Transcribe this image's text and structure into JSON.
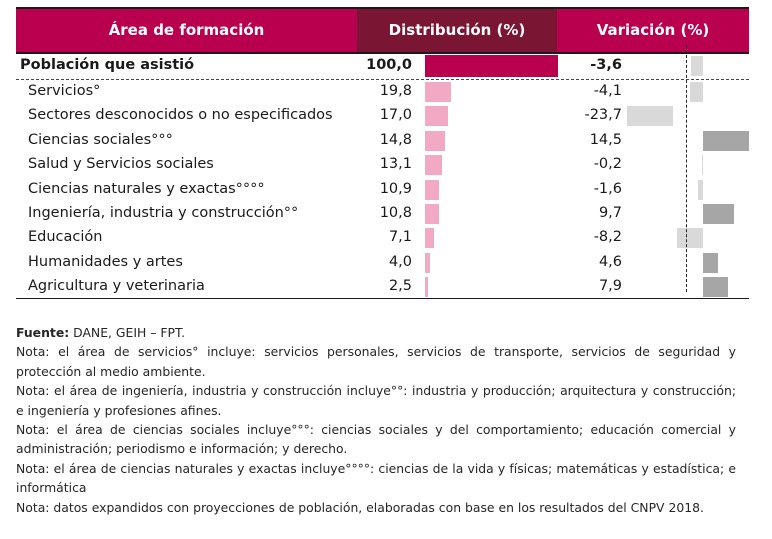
{
  "table": {
    "headers": {
      "area": "Área de formación",
      "distribution": "Distribución (%)",
      "variation": "Variación (%)"
    },
    "colors": {
      "header_primary": "#B8004E",
      "header_secondary": "#7A1633",
      "distribution_bar": "#F2A9C4",
      "total_bar": "#B8004E",
      "variation_negative": "#D9D9D9",
      "variation_positive": "#A6A6A6"
    },
    "total": {
      "label": "Población que asistió",
      "distribution": "100,0",
      "variation": "-3,6",
      "distribution_value": 100.0,
      "variation_value": -3.6
    },
    "rows": [
      {
        "label": "Servicios°",
        "distribution": "19,8",
        "variation": "-4,1",
        "distribution_value": 19.8,
        "variation_value": -4.1
      },
      {
        "label": "Sectores desconocidos o no especificados",
        "distribution": "17,0",
        "variation": "-23,7",
        "distribution_value": 17.0,
        "variation_value": -23.7
      },
      {
        "label": "Ciencias sociales°°°",
        "distribution": "14,8",
        "variation": "14,5",
        "distribution_value": 14.8,
        "variation_value": 14.5
      },
      {
        "label": "Salud y Servicios sociales",
        "distribution": "13,1",
        "variation": "-0,2",
        "distribution_value": 13.1,
        "variation_value": -0.2
      },
      {
        "label": "Ciencias naturales y exactas°°°°",
        "distribution": "10,9",
        "variation": "-1,6",
        "distribution_value": 10.9,
        "variation_value": -1.6
      },
      {
        "label": "Ingeniería, industria y construcción°°",
        "distribution": "10,8",
        "variation": "9,7",
        "distribution_value": 10.8,
        "variation_value": 9.7
      },
      {
        "label": "Educación",
        "distribution": "7,1",
        "variation": "-8,2",
        "distribution_value": 7.1,
        "variation_value": -8.2
      },
      {
        "label": "Humanidades y artes",
        "distribution": "4,0",
        "variation": "4,6",
        "distribution_value": 4.0,
        "variation_value": 4.6
      },
      {
        "label": "Agricultura y veterinaria",
        "distribution": "2,5",
        "variation": "7,9",
        "distribution_value": 2.5,
        "variation_value": 7.9
      }
    ]
  },
  "notes": {
    "source_label": "Fuente:",
    "source_text": " DANE, GEIH – FPT.",
    "lines": [
      "Nota: el área de servicios° incluye: servicios personales, servicios de transporte, servicios de seguridad y protección al medio ambiente.",
      "Nota: el área de ingeniería, industria y construcción incluye°°: industria y producción; arquitectura y construcción; e ingeniería y profesiones afines.",
      "Nota: el área de ciencias sociales incluye°°°: ciencias sociales y del comportamiento; educación comercial y administración; periodismo e información; y derecho.",
      "Nota: el área de ciencias naturales y exactas incluye°°°°: ciencias de la vida y físicas; matemáticas y estadística; e informática",
      "Nota: datos expandidos con proyecciones de población, elaboradas con base en los resultados del CNPV 2018."
    ]
  }
}
